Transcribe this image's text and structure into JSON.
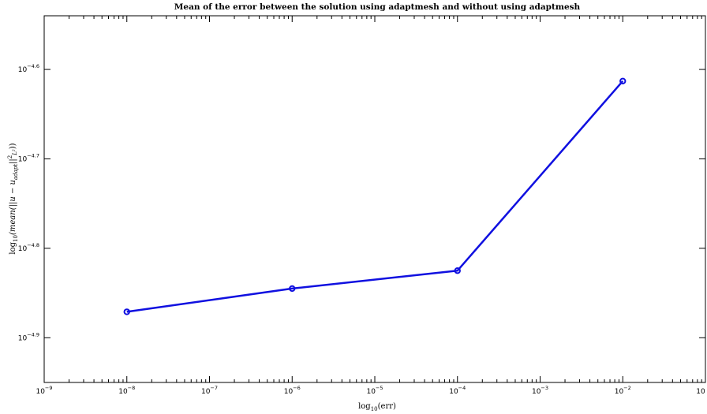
{
  "chart_data": {
    "type": "line",
    "title": "Mean of the error  between the solution using adaptmesh and without using adaptmesh",
    "xlabel_main": "log",
    "xlabel_sub": "10",
    "xlabel_arg": "(err)",
    "ylabel_main": "log",
    "ylabel_sub": "10",
    "ylabel_expr": "(mean(||u − u",
    "ylabel_expr_sub": "adapt",
    "ylabel_expr_tail": "||",
    "ylabel_expr_sup": "2",
    "ylabel_expr_sub2": "L²",
    "ylabel_expr_close": "))",
    "x_scale": "log",
    "y_scale": "log",
    "xlim": [
      1e-09,
      0.1
    ],
    "ylim_exponent": [
      -4.95,
      -4.54
    ],
    "x_ticks": [
      {
        "base": "10",
        "exp": "−9",
        "value": 1e-09
      },
      {
        "base": "10",
        "exp": "−8",
        "value": 1e-08
      },
      {
        "base": "10",
        "exp": "−7",
        "value": 1e-07
      },
      {
        "base": "10",
        "exp": "−6",
        "value": 1e-06
      },
      {
        "base": "10",
        "exp": "−5",
        "value": 1e-05
      },
      {
        "base": "10",
        "exp": "−4",
        "value": 0.0001
      },
      {
        "base": "10",
        "exp": "−3",
        "value": 0.001
      },
      {
        "base": "10",
        "exp": "−2",
        "value": 0.01
      },
      {
        "base": "10",
        "exp": "",
        "value": 0.1
      }
    ],
    "y_ticks": [
      {
        "base": "10",
        "exp": "−4.6",
        "value": -4.6
      },
      {
        "base": "10",
        "exp": "−4.7",
        "value": -4.7
      },
      {
        "base": "10",
        "exp": "−4.8",
        "value": -4.8
      },
      {
        "base": "10",
        "exp": "−4.9",
        "value": -4.9
      }
    ],
    "series": [
      {
        "color": "#1010e0",
        "marker": "circle",
        "x": [
          1e-08,
          1e-06,
          0.0001,
          0.01
        ],
        "y_exponent": [
          -4.871,
          -4.845,
          -4.825,
          -4.613
        ]
      }
    ],
    "grid": false,
    "legend": "none"
  }
}
